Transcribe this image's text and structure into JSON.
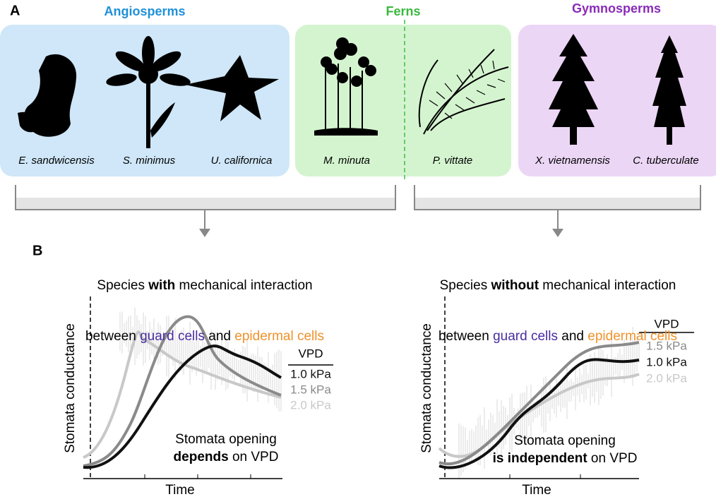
{
  "panel_a": {
    "label": "A",
    "groups": [
      {
        "name": "Angiosperms",
        "species": [
          "E. sandwicensis",
          "S. minimus",
          "U. californica"
        ]
      },
      {
        "name": "Ferns",
        "species": [
          "M. minuta",
          "P. vittate"
        ]
      },
      {
        "name": "Gymnosperms",
        "species": [
          "X. vietnamensis",
          "C. tuberculate"
        ]
      }
    ]
  },
  "panel_b": {
    "label": "B",
    "charts": [
      {
        "title_line1": [
          "Species ",
          "with",
          " mechanical interaction"
        ],
        "title_line2": [
          "between ",
          "guard cells",
          " and ",
          "epidermal cells"
        ],
        "y_label": "Stomata conductance",
        "x_label": "Time",
        "legend_title": "VPD",
        "legend": [
          "1.0 kPa",
          "1.5 kPa",
          "2.0 kPa"
        ],
        "note_line1": "Stomata opening",
        "note_line2": [
          "depends",
          " on VPD"
        ]
      },
      {
        "title_line1": [
          "Species ",
          "without",
          " mechanical interaction"
        ],
        "title_line2": [
          "between ",
          "guard cells",
          " and ",
          "epidermal cells"
        ],
        "y_label": "Stomata conductance",
        "x_label": "Time",
        "legend_title": "VPD",
        "legend": [
          "1.5 kPa",
          "1.0 kPa",
          "2.0 kPa"
        ],
        "note_line1": "Stomata opening",
        "note_line2": [
          "is independent",
          " on VPD"
        ]
      }
    ]
  }
}
